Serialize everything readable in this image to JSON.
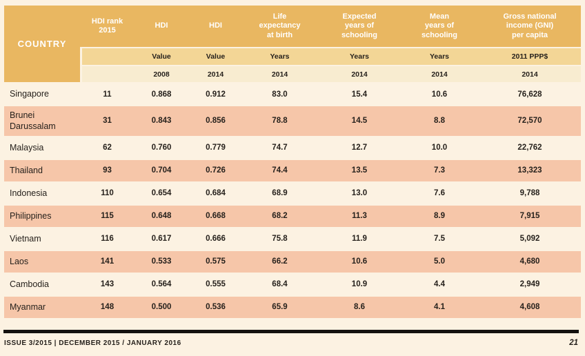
{
  "table": {
    "country_header": "COUNTRY",
    "columns": [
      {
        "title": "HDI rank\n2015",
        "unit": "",
        "year": ""
      },
      {
        "title": "HDI",
        "unit": "Value",
        "year": "2008"
      },
      {
        "title": "HDI",
        "unit": "Value",
        "year": "2014"
      },
      {
        "title": "Life\nexpectancy\nat birth",
        "unit": "Years",
        "year": "2014"
      },
      {
        "title": "Expected\nyears of\nschooling",
        "unit": "Years",
        "year": "2014"
      },
      {
        "title": "Mean\nyears of\nschooling",
        "unit": "Years",
        "year": "2014"
      },
      {
        "title": "Gross national\nincome (GNI)\nper capita",
        "unit": "2011 PPP$",
        "year": "2014"
      }
    ],
    "rows": [
      {
        "country": "Singapore",
        "values": [
          "11",
          "0.868",
          "0.912",
          "83.0",
          "15.4",
          "10.6",
          "76,628"
        ]
      },
      {
        "country": "Brunei\nDarussalam",
        "values": [
          "31",
          "0.843",
          "0.856",
          "78.8",
          "14.5",
          "8.8",
          "72,570"
        ]
      },
      {
        "country": "Malaysia",
        "values": [
          "62",
          "0.760",
          "0.779",
          "74.7",
          "12.7",
          "10.0",
          "22,762"
        ]
      },
      {
        "country": "Thailand",
        "values": [
          "93",
          "0.704",
          "0.726",
          "74.4",
          "13.5",
          "7.3",
          "13,323"
        ]
      },
      {
        "country": "Indonesia",
        "values": [
          "110",
          "0.654",
          "0.684",
          "68.9",
          "13.0",
          "7.6",
          "9,788"
        ]
      },
      {
        "country": "Philippines",
        "values": [
          "115",
          "0.648",
          "0.668",
          "68.2",
          "11.3",
          "8.9",
          "7,915"
        ]
      },
      {
        "country": "Vietnam",
        "values": [
          "116",
          "0.617",
          "0.666",
          "75.8",
          "11.9",
          "7.5",
          "5,092"
        ]
      },
      {
        "country": "Laos",
        "values": [
          "141",
          "0.533",
          "0.575",
          "66.2",
          "10.6",
          "5.0",
          "4,680"
        ]
      },
      {
        "country": "Cambodia",
        "values": [
          "143",
          "0.564",
          "0.555",
          "68.4",
          "10.9",
          "4.4",
          "2,949"
        ]
      },
      {
        "country": "Myanmar",
        "values": [
          "148",
          "0.500",
          "0.536",
          "65.9",
          "8.6",
          "4.1",
          "4,608"
        ]
      }
    ]
  },
  "footer": {
    "issue_text": "ISSUE 3/2015 | DECEMBER 2015 / JANUARY 2016",
    "page_number": "21"
  },
  "colors": {
    "header_gold": "#e9b761",
    "subheader_gold": "#f3d696",
    "year_row": "#f8ecd0",
    "page_cream": "#fcf2e2",
    "row_salmon": "#f6c6a9",
    "text_dark": "#26211c",
    "header_text": "#ffffff",
    "rule_black": "#14110e"
  }
}
